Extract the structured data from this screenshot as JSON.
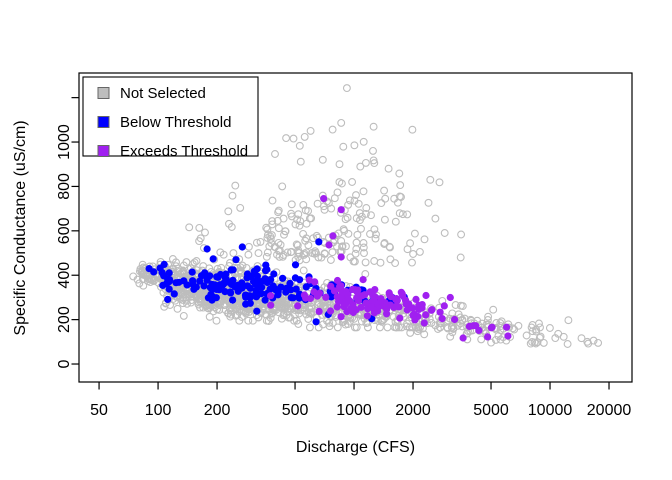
{
  "window": {
    "background": "#ffffff"
  },
  "chart_data": {
    "type": "scatter",
    "title": "",
    "xlabel": "Discharge (CFS)",
    "ylabel": "Specific Conductance (uS/cm)",
    "x_scale": "log10",
    "grid": false,
    "xlim": [
      39.5,
      26200
    ],
    "ylim": [
      -81,
      1311
    ],
    "x_ticks": {
      "values": [
        50,
        100,
        200,
        500,
        1000,
        2000,
        5000,
        10000,
        20000
      ],
      "labels": [
        "50",
        "100",
        "200",
        "500",
        "1000",
        "2000",
        "5000",
        "10000",
        "20000"
      ]
    },
    "y_ticks": {
      "values": [
        0,
        200,
        400,
        600,
        800,
        1000
      ],
      "labels": [
        "0",
        "200",
        "400",
        "600",
        "800",
        "1000"
      ],
      "extra_unlabeled": [
        1200
      ]
    },
    "axis_color": "#000000",
    "legend": {
      "position": "top-left",
      "border": true,
      "items": [
        {
          "label": "Not Selected",
          "color": "#BDBDBD"
        },
        {
          "label": "Below Threshold",
          "color": "#0000FF"
        },
        {
          "label": "Exceeds Threshold",
          "color": "#A020F0"
        }
      ]
    },
    "series": [
      {
        "id": "not-selected",
        "name": "Not Selected",
        "marker": "open-circle",
        "color": "#BDBDBD",
        "marker_radius": 3.4,
        "seed": 1337,
        "clusters": [
          {
            "n": 70,
            "logx": {
              "mean": 1.98,
              "sd": 0.06,
              "min": 1.87,
              "max": 2.1
            },
            "y": {
              "base": 405,
              "slope": -50,
              "ref": 2.0,
              "sd": 24,
              "min": 345,
              "max": 460
            }
          },
          {
            "n": 760,
            "logx": {
              "mean": 2.34,
              "sd": 0.22,
              "min": 2.02,
              "max": 2.95
            },
            "y": {
              "base": 364,
              "slope": -118,
              "ref": 2.0,
              "sd": 50,
              "min": 195,
              "max": 505
            }
          },
          {
            "n": 300,
            "logx": {
              "mean": 2.85,
              "sd": 0.3,
              "min": 2.25,
              "max": 3.6
            },
            "y": {
              "base": 364,
              "slope": -118,
              "ref": 2.0,
              "sd": 55,
              "min": 165,
              "max": 520
            }
          },
          {
            "n": 150,
            "logx": {
              "mean": 3.55,
              "sd": 0.33,
              "min": 3.0,
              "max": 4.27
            },
            "y": {
              "base": 364,
              "slope": -118,
              "ref": 2.0,
              "sd": 34,
              "min": 92,
              "max": 330
            }
          },
          {
            "n": 130,
            "logx": {
              "mean": 2.75,
              "sd": 0.3,
              "min": 2.15,
              "max": 3.55
            },
            "y": {
              "base": 465,
              "slope": -40,
              "ref": 2.75,
              "sd": 105,
              "min": 440,
              "max": 830,
              "halfnormal": true
            }
          },
          {
            "n": 62,
            "logx": {
              "mean": 2.95,
              "sd": 0.25,
              "min": 2.45,
              "max": 3.5
            },
            "y": {
              "base": 685,
              "slope": -60,
              "ref": 2.95,
              "sd": 85,
              "min": 545,
              "max": 900
            }
          },
          {
            "n": 16,
            "logx": {
              "mean": 2.95,
              "sd": 0.18,
              "min": 2.55,
              "max": 3.3
            },
            "y": {
              "base": 960,
              "slope": 0,
              "ref": 2.95,
              "sd": 95,
              "min": 820,
              "max": 1180
            }
          }
        ],
        "outlier_points": [
          [
            920,
            1243
          ],
          [
            860,
            1086
          ],
          [
            600,
            1050
          ],
          [
            560,
            1023
          ],
          [
            395,
            946
          ],
          [
            1150,
            906
          ],
          [
            1250,
            960
          ],
          [
            1500,
            880
          ],
          [
            1720,
            806
          ],
          [
            2450,
            830
          ],
          [
            2600,
            655
          ],
          [
            2900,
            590
          ],
          [
            3500,
            480
          ],
          [
            8100,
            99
          ],
          [
            9300,
            95
          ],
          [
            12300,
            90
          ],
          [
            15500,
            100
          ],
          [
            17600,
            95
          ]
        ]
      },
      {
        "id": "below-threshold",
        "name": "Below Threshold",
        "marker": "filled-circle",
        "color": "#0000FF",
        "marker_radius": 3.6,
        "seed": 2024,
        "clusters": [
          {
            "n": 150,
            "logx": {
              "mean": 2.45,
              "sd": 0.26,
              "min": 2.0,
              "max": 3.05
            },
            "y": {
              "base": 355,
              "slope": -45,
              "ref": 2.45,
              "sd": 40,
              "min": 205,
              "max": 525
            }
          },
          {
            "n": 16,
            "logx": {
              "mean": 3.02,
              "sd": 0.14,
              "min": 2.82,
              "max": 3.32
            },
            "y": {
              "base": 300,
              "slope": -60,
              "ref": 3.0,
              "sd": 45,
              "min": 195,
              "max": 420
            }
          }
        ],
        "outlier_points": [
          [
            90,
            430
          ],
          [
            95,
            415
          ],
          [
            178,
            518
          ],
          [
            269,
            527
          ],
          [
            250,
            470
          ],
          [
            661,
            550
          ],
          [
            640,
            190
          ]
        ]
      },
      {
        "id": "exceeds-threshold",
        "name": "Exceeds Threshold",
        "marker": "filled-circle",
        "color": "#A020F0",
        "marker_radius": 3.6,
        "seed": 777,
        "clusters": [
          {
            "n": 118,
            "logx": {
              "mean": 3.08,
              "sd": 0.19,
              "min": 2.55,
              "max": 3.55
            },
            "y": {
              "base": 288,
              "slope": -75,
              "ref": 3.05,
              "sd": 38,
              "min": 140,
              "max": 430
            }
          },
          {
            "n": 9,
            "logx": {
              "mean": 3.58,
              "sd": 0.12,
              "min": 3.38,
              "max": 3.82
            },
            "y": {
              "base": 175,
              "slope": -40,
              "ref": 3.6,
              "sd": 28,
              "min": 115,
              "max": 235
            }
          }
        ],
        "outlier_points": [
          [
            700,
            745
          ],
          [
            860,
            695
          ],
          [
            780,
            577
          ],
          [
            745,
            536
          ],
          [
            860,
            482
          ],
          [
            3600,
            117
          ],
          [
            4800,
            122
          ],
          [
            6100,
            126
          ]
        ]
      }
    ]
  }
}
